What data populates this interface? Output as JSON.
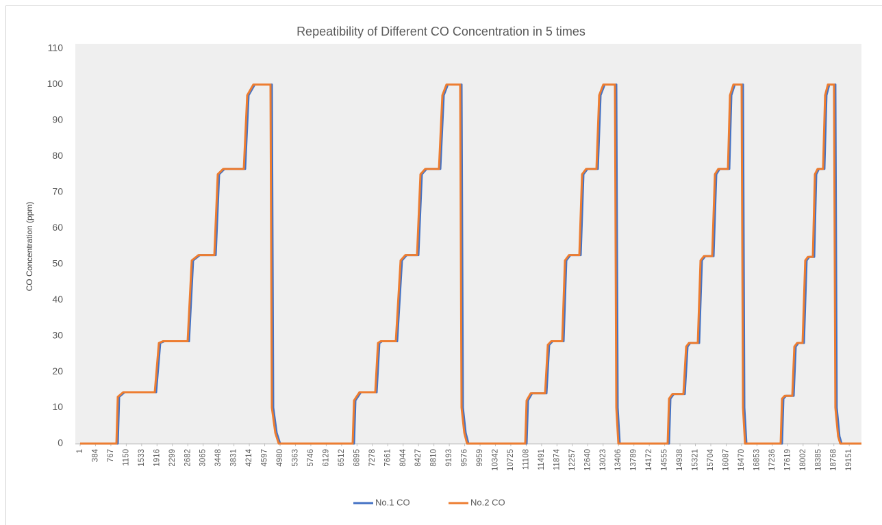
{
  "chart_data": {
    "type": "line",
    "title": "Repeatibility of Different CO Concentration in 5 times",
    "y_label": "CO Concentration (ppm)",
    "xlim": [
      -118,
      19455
    ],
    "xticks": [
      1,
      384,
      767,
      1150,
      1533,
      1916,
      2299,
      2682,
      3065,
      3448,
      3831,
      4214,
      4597,
      4980,
      5363,
      5746,
      6129,
      6512,
      6895,
      7278,
      7661,
      8044,
      8427,
      8810,
      9193,
      9576,
      9959,
      10342,
      10725,
      11108,
      11491,
      11874,
      12257,
      12640,
      13023,
      13406,
      13789,
      14172,
      14555,
      14938,
      15321,
      15704,
      16087,
      16470,
      16853,
      17236,
      17619,
      18002,
      18385,
      18768,
      19151
    ],
    "ylim": [
      0,
      110
    ],
    "yticks": [
      0,
      10,
      20,
      30,
      40,
      50,
      60,
      70,
      80,
      90,
      100,
      110
    ],
    "grid": false,
    "legend": "bottom",
    "series": [
      {
        "name": "No.1 CO",
        "color": "#4472c4",
        "x": [
          1,
          939,
          973,
          1109,
          1894,
          1996,
          2098,
          2712,
          2814,
          2985,
          3377,
          3462,
          3598,
          4110,
          4195,
          4349,
          4775,
          4809,
          4894,
          4980,
          6821,
          6855,
          6991,
          7384,
          7452,
          7520,
          7895,
          8014,
          8134,
          8424,
          8509,
          8628,
          8969,
          9054,
          9157,
          9498,
          9532,
          9600,
          9668,
          11117,
          11151,
          11254,
          11612,
          11680,
          11765,
          12038,
          12106,
          12209,
          12465,
          12533,
          12635,
          12891,
          12959,
          13061,
          13351,
          13385,
          13436,
          14664,
          14698,
          14783,
          15056,
          15124,
          15192,
          15414,
          15482,
          15567,
          15772,
          15840,
          15925,
          16164,
          16215,
          16301,
          16505,
          16539,
          16590,
          17477,
          17511,
          17579,
          17767,
          17818,
          17886,
          18022,
          18090,
          18158,
          18278,
          18329,
          18397,
          18533,
          18584,
          18653,
          18806,
          18840,
          18908,
          18960,
          18990
        ],
        "values": [
          0,
          0,
          13,
          14.3,
          14.3,
          28,
          28.5,
          28.5,
          51,
          52.5,
          52.5,
          75,
          76.5,
          76.5,
          97,
          100,
          100,
          10,
          3,
          0,
          0,
          12,
          14.3,
          14.3,
          28,
          28.5,
          28.5,
          51,
          52.5,
          52.5,
          75,
          76.5,
          76.5,
          97,
          100,
          100,
          10,
          3,
          0,
          0,
          12,
          14,
          14,
          27.5,
          28.5,
          28.5,
          51,
          52.5,
          52.5,
          75,
          76.5,
          76.5,
          97,
          100,
          100,
          10,
          0,
          0,
          12.5,
          13.8,
          13.8,
          27,
          28,
          28,
          51,
          52.2,
          52.2,
          75,
          76.5,
          76.5,
          97,
          100,
          100,
          10,
          0,
          0,
          12.5,
          13.3,
          13.3,
          27,
          28,
          28,
          51,
          52,
          52,
          75,
          76.5,
          76.5,
          97,
          100,
          100,
          10,
          2,
          0,
          0
        ]
      },
      {
        "name": "No.2 CO",
        "color": "#ed7d31",
        "x": [
          1,
          905,
          939,
          1075,
          1860,
          1962,
          2064,
          2678,
          2780,
          2951,
          3343,
          3428,
          3564,
          4076,
          4161,
          4315,
          4741,
          4775,
          4860,
          4946,
          6787,
          6821,
          6957,
          7350,
          7418,
          7486,
          7861,
          7980,
          8100,
          8390,
          8475,
          8594,
          8935,
          9020,
          9123,
          9464,
          9498,
          9566,
          9634,
          11083,
          11117,
          11220,
          11578,
          11646,
          11731,
          12004,
          12072,
          12175,
          12431,
          12499,
          12601,
          12857,
          12925,
          13027,
          13317,
          13351,
          13402,
          14630,
          14664,
          14749,
          15022,
          15090,
          15158,
          15380,
          15448,
          15533,
          15738,
          15806,
          15891,
          16130,
          16181,
          16267,
          16471,
          16505,
          16556,
          17443,
          17477,
          17545,
          17733,
          17784,
          17852,
          17988,
          18056,
          18124,
          18244,
          18295,
          18363,
          18499,
          18550,
          18619,
          18772,
          18806,
          18874,
          18926,
          19455
        ],
        "values": [
          0,
          0,
          13,
          14.3,
          14.3,
          28,
          28.5,
          28.5,
          51,
          52.5,
          52.5,
          75,
          76.5,
          76.5,
          97,
          100,
          100,
          10,
          3,
          0,
          0,
          12,
          14.3,
          14.3,
          28,
          28.5,
          28.5,
          51,
          52.5,
          52.5,
          75,
          76.5,
          76.5,
          97,
          100,
          100,
          10,
          3,
          0,
          0,
          12,
          14,
          14,
          27.5,
          28.5,
          28.5,
          51,
          52.5,
          52.5,
          75,
          76.5,
          76.5,
          97,
          100,
          100,
          10,
          0,
          0,
          12.5,
          13.8,
          13.8,
          27,
          28,
          28,
          51,
          52.2,
          52.2,
          75,
          76.5,
          76.5,
          97,
          100,
          100,
          10,
          0,
          0,
          12.5,
          13.3,
          13.3,
          27,
          28,
          28,
          51,
          52,
          52,
          75,
          76.5,
          76.5,
          97,
          100,
          100,
          10,
          2,
          0,
          0
        ]
      }
    ]
  }
}
